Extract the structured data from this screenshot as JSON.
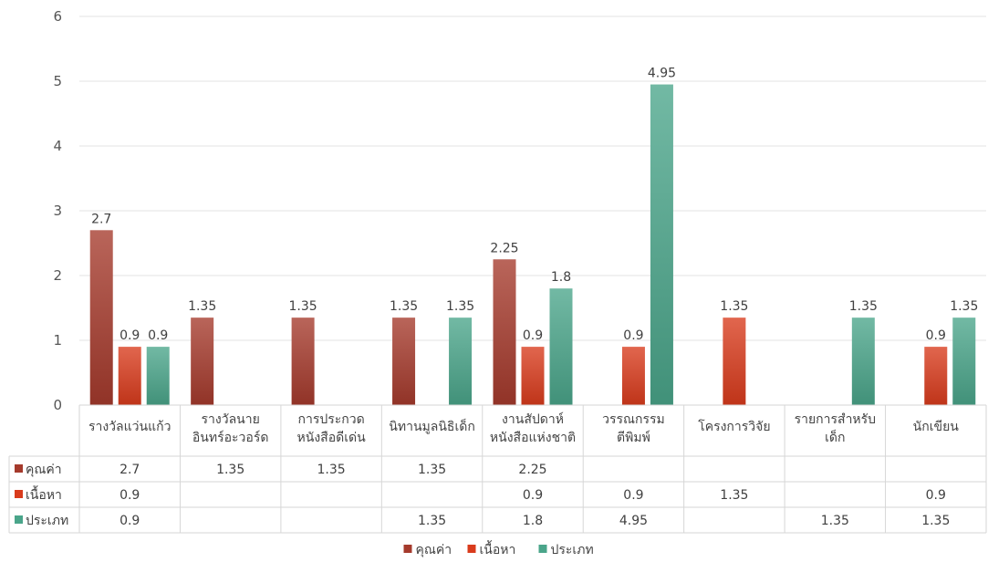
{
  "chart_data": {
    "type": "bar",
    "categories": [
      [
        "รางวัลแว่นแก้ว"
      ],
      [
        "รางวัลนาย",
        "อินทร์อะวอร์ด"
      ],
      [
        "การประกวด",
        "หนังสือดีเด่น"
      ],
      [
        "นิทานมูลนิธิเด็ก"
      ],
      [
        "งานสัปดาห์",
        "หนังสือแห่งชาติ"
      ],
      [
        "วรรณกรรม",
        "ตีพิมพ์"
      ],
      [
        "โครงการวิจัย"
      ],
      [
        "รายการสำหรับ",
        "เด็ก"
      ],
      [
        "นักเขียน"
      ]
    ],
    "series": [
      {
        "name": "คุณค่า",
        "color": "#a53a2c",
        "values": [
          2.7,
          1.35,
          1.35,
          1.35,
          2.25,
          null,
          null,
          null,
          null
        ]
      },
      {
        "name": "เนื้อหา",
        "color": "#d93b1c",
        "values": [
          0.9,
          null,
          null,
          null,
          0.9,
          0.9,
          1.35,
          null,
          0.9
        ]
      },
      {
        "name": "ประเภท",
        "color": "#4aa58a",
        "values": [
          0.9,
          null,
          null,
          1.35,
          1.8,
          4.95,
          null,
          1.35,
          1.35
        ]
      }
    ],
    "y_ticks": [
      "0",
      "1",
      "2",
      "3",
      "4",
      "5",
      "6"
    ],
    "ylim": [
      0,
      6
    ],
    "grid": true,
    "legend": "bottom",
    "data_table": true
  }
}
